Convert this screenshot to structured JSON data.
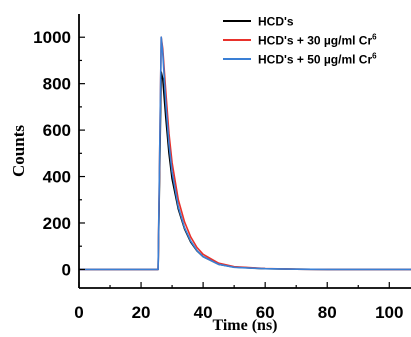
{
  "chart_data": {
    "type": "line",
    "title": "",
    "xlabel": "Time (ns)",
    "ylabel": "Counts",
    "xlim": [
      0,
      107
    ],
    "ylim": [
      -80,
      1100
    ],
    "xticks": [
      0,
      20,
      40,
      60,
      80,
      100
    ],
    "xtick_labels": [
      "0",
      "20",
      "40",
      "60",
      "80",
      "100"
    ],
    "yticks": [
      0,
      200,
      400,
      600,
      800,
      1000
    ],
    "ytick_labels": [
      "0",
      "200",
      "400",
      "600",
      "800",
      "1000"
    ],
    "grid": false,
    "legend_position": "top-right",
    "series": [
      {
        "name": "HCD's",
        "legend_base": "HCD's",
        "legend_sup": "",
        "color": "#000000",
        "x": [
          0,
          25.5,
          26.5,
          27,
          28,
          29,
          30,
          32,
          34,
          36,
          38,
          40,
          45,
          50,
          60,
          70,
          80,
          90,
          100,
          107
        ],
        "y": [
          0,
          0,
          850,
          820,
          650,
          500,
          390,
          260,
          175,
          118,
          80,
          55,
          22,
          10,
          3,
          1,
          0,
          0,
          0,
          0
        ]
      },
      {
        "name": "HCD's + 30 µg/ml Cr6",
        "legend_base": "HCD's + 30 µg/ml Cr",
        "legend_sup": "6",
        "color": "#e8312b",
        "x": [
          0,
          25.5,
          26.5,
          27,
          28,
          29,
          30,
          32,
          34,
          36,
          38,
          40,
          45,
          50,
          60,
          70,
          80,
          90,
          100,
          107
        ],
        "y": [
          0,
          0,
          1000,
          950,
          760,
          585,
          460,
          300,
          205,
          140,
          95,
          65,
          27,
          12,
          4,
          1,
          0,
          0,
          0,
          0
        ]
      },
      {
        "name": "HCD's + 50 µg/ml Cr6",
        "legend_base": "HCD's + 50 µg/ml Cr",
        "legend_sup": "6",
        "color": "#3a7fd5",
        "x": [
          0,
          25.5,
          26.5,
          27,
          28,
          29,
          30,
          32,
          34,
          36,
          38,
          40,
          45,
          50,
          60,
          70,
          80,
          90,
          100,
          107
        ],
        "y": [
          0,
          0,
          1000,
          930,
          710,
          540,
          420,
          270,
          180,
          122,
          82,
          55,
          22,
          9,
          3,
          1,
          0,
          0,
          0,
          0
        ]
      }
    ]
  }
}
